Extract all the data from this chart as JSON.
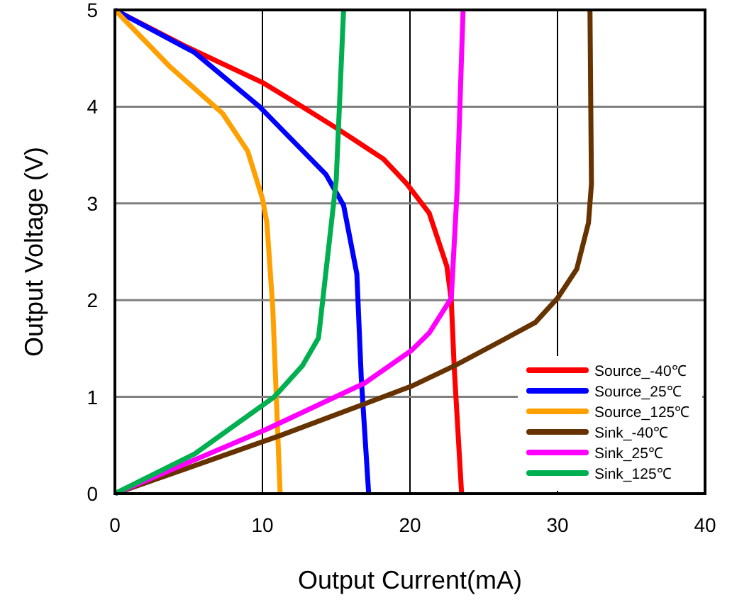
{
  "chart_data": {
    "type": "line",
    "xlabel": "Output Current(mA)",
    "ylabel": "Output Voltage (V)",
    "xlim": [
      0,
      40
    ],
    "xticks": [
      0,
      10,
      20,
      30,
      40
    ],
    "ylim": [
      0,
      5
    ],
    "yticks": [
      0,
      1,
      2,
      3,
      4,
      5
    ],
    "grid": true,
    "legend": "bottom right",
    "line_style": "solid",
    "marker": "none",
    "series": [
      {
        "name": "Source_-40℃",
        "color": "#ff0000",
        "x": [
          0,
          4.7,
          10,
          12.7,
          15,
          18.2,
          19.8,
          21.3,
          22.5,
          22.8,
          23,
          23.5
        ],
        "values": [
          5,
          4.63,
          4.25,
          4,
          3.78,
          3.46,
          3.2,
          2.9,
          2.35,
          2,
          1.3,
          0
        ]
      },
      {
        "name": "Source_25℃",
        "color": "#0000ff",
        "x": [
          0,
          5.4,
          9.8,
          14.3,
          15.5,
          16.4,
          16.7,
          17.2
        ],
        "values": [
          5,
          4.56,
          4,
          3.3,
          2.98,
          2.27,
          1.19,
          0
        ]
      },
      {
        "name": "Source_125℃",
        "color": "#ffa000",
        "x": [
          0,
          3.75,
          7.3,
          9,
          10,
          10.3,
          10.7,
          11.2
        ],
        "values": [
          5,
          4.41,
          3.93,
          3.54,
          3.05,
          2.8,
          1.92,
          0
        ]
      },
      {
        "name": "Sink_-40℃",
        "color": "#663300",
        "x": [
          0,
          11.2,
          20.1,
          23,
          26.2,
          28.5,
          30,
          31.3,
          32.1,
          32.3,
          32.2
        ],
        "values": [
          0,
          0.6,
          1.11,
          1.32,
          1.58,
          1.77,
          2.02,
          2.32,
          2.8,
          3.2,
          5
        ]
      },
      {
        "name": "Sink_25℃",
        "color": "#ff00ff",
        "x": [
          0,
          10.2,
          16.9,
          20.1,
          21.3,
          22.8,
          23.2,
          23.6
        ],
        "values": [
          0,
          0.66,
          1.14,
          1.48,
          1.66,
          2.02,
          3.15,
          5
        ]
      },
      {
        "name": "Sink_125℃",
        "color": "#00b050",
        "x": [
          0,
          5.4,
          10.8,
          12.7,
          13.8,
          15,
          15.5
        ],
        "values": [
          0,
          0.41,
          1,
          1.32,
          1.61,
          3.24,
          5
        ]
      }
    ]
  }
}
